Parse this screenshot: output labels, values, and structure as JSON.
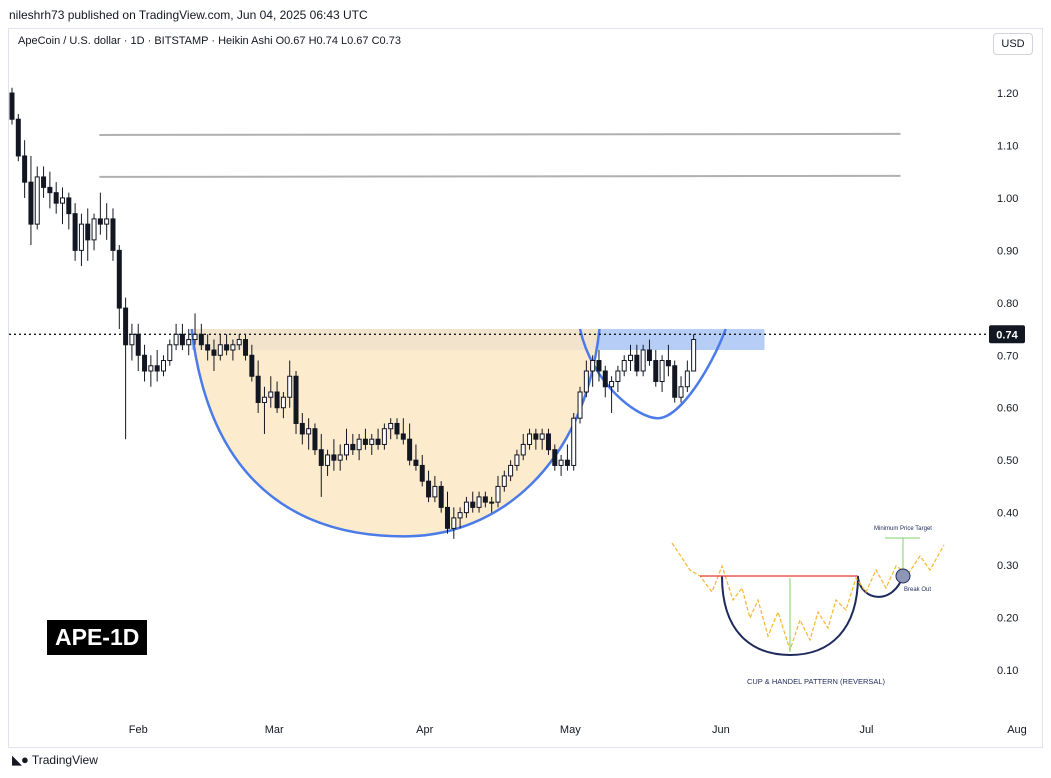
{
  "header": {
    "publisher": "nileshrh73 published on TradingView.com, Jun 04, 2025 06:43 UTC",
    "legend": "ApeCoin / U.S. dollar · 1D · BITSTAMP · Heikin Ashi  O0.67  H0.74  L0.67  C0.73",
    "currency": "USD"
  },
  "ticker_label": "APE-1D",
  "footer": {
    "logo": "◣●",
    "brand": "TradingView"
  },
  "inset": {
    "title": "Minimum Price Target",
    "breakout": "Break Out",
    "caption": "CUP & HANDEL PATTERN (REVERSAL)"
  },
  "price_badge": "0.74",
  "colors": {
    "bull": "#131722",
    "bear": "#131722",
    "cup_fill": "#fde7c4",
    "cup_line": "#4a7be8",
    "resistance_band": "#a9c5f5",
    "target_lines": "#b0b0b0"
  },
  "chart_data": {
    "type": "candlestick",
    "style": "Heikin Ashi",
    "symbol": "APEUSD",
    "timeframe": "1D",
    "y_axis": {
      "ticks": [
        0.1,
        0.2,
        0.3,
        0.4,
        0.5,
        0.6,
        0.7,
        0.8,
        0.9,
        1.0,
        1.1,
        1.2
      ],
      "labels": [
        "0.10",
        "0.20",
        "0.30",
        "0.40",
        "0.50",
        "0.60",
        "0.70",
        "0.80",
        "0.90",
        "1.00",
        "1.10",
        "1.20"
      ],
      "ylim": [
        0.02,
        1.27
      ]
    },
    "x_axis": {
      "labels": [
        "Feb",
        "Mar",
        "Apr",
        "May",
        "Jun",
        "Jul",
        "Aug"
      ],
      "label_days": [
        26,
        54,
        85,
        115,
        146,
        176,
        207
      ]
    },
    "last_price": 0.74,
    "candles": [
      [
        0,
        1.2,
        1.21,
        1.14,
        1.15
      ],
      [
        1,
        1.15,
        1.16,
        1.07,
        1.08
      ],
      [
        2,
        1.08,
        1.11,
        1.0,
        1.03
      ],
      [
        3,
        1.03,
        1.08,
        0.91,
        0.95
      ],
      [
        4,
        0.95,
        1.06,
        0.94,
        1.04
      ],
      [
        5,
        1.04,
        1.06,
        1.0,
        1.02
      ],
      [
        6,
        1.02,
        1.05,
        0.98,
        1.01
      ],
      [
        7,
        1.01,
        1.03,
        0.97,
        0.99
      ],
      [
        8,
        0.99,
        1.02,
        0.95,
        1.0
      ],
      [
        9,
        1.0,
        1.01,
        0.94,
        0.97
      ],
      [
        10,
        0.97,
        0.99,
        0.88,
        0.9
      ],
      [
        11,
        0.9,
        0.97,
        0.87,
        0.95
      ],
      [
        12,
        0.95,
        0.98,
        0.88,
        0.92
      ],
      [
        13,
        0.92,
        0.97,
        0.9,
        0.96
      ],
      [
        14,
        0.96,
        1.01,
        0.93,
        0.95
      ],
      [
        15,
        0.95,
        0.99,
        0.92,
        0.96
      ],
      [
        16,
        0.96,
        0.98,
        0.88,
        0.9
      ],
      [
        17,
        0.9,
        0.91,
        0.75,
        0.79
      ],
      [
        18,
        0.79,
        0.81,
        0.54,
        0.72
      ],
      [
        19,
        0.72,
        0.76,
        0.69,
        0.74
      ],
      [
        20,
        0.74,
        0.76,
        0.67,
        0.7
      ],
      [
        21,
        0.7,
        0.72,
        0.65,
        0.67
      ],
      [
        22,
        0.67,
        0.7,
        0.64,
        0.68
      ],
      [
        23,
        0.68,
        0.71,
        0.65,
        0.67
      ],
      [
        24,
        0.67,
        0.7,
        0.66,
        0.69
      ],
      [
        25,
        0.69,
        0.73,
        0.68,
        0.72
      ],
      [
        26,
        0.72,
        0.76,
        0.71,
        0.74
      ],
      [
        27,
        0.74,
        0.76,
        0.71,
        0.72
      ],
      [
        28,
        0.72,
        0.75,
        0.7,
        0.73
      ],
      [
        29,
        0.73,
        0.78,
        0.72,
        0.74
      ],
      [
        30,
        0.74,
        0.76,
        0.71,
        0.72
      ],
      [
        31,
        0.72,
        0.74,
        0.69,
        0.71
      ],
      [
        32,
        0.71,
        0.73,
        0.67,
        0.7
      ],
      [
        33,
        0.7,
        0.74,
        0.69,
        0.72
      ],
      [
        34,
        0.72,
        0.74,
        0.7,
        0.71
      ],
      [
        35,
        0.71,
        0.73,
        0.69,
        0.72
      ],
      [
        36,
        0.72,
        0.74,
        0.71,
        0.73
      ],
      [
        37,
        0.73,
        0.74,
        0.69,
        0.7
      ],
      [
        38,
        0.7,
        0.72,
        0.65,
        0.66
      ],
      [
        39,
        0.66,
        0.69,
        0.59,
        0.61
      ],
      [
        40,
        0.61,
        0.64,
        0.55,
        0.62
      ],
      [
        41,
        0.62,
        0.66,
        0.6,
        0.63
      ],
      [
        42,
        0.63,
        0.65,
        0.59,
        0.6
      ],
      [
        43,
        0.6,
        0.63,
        0.58,
        0.62
      ],
      [
        44,
        0.62,
        0.69,
        0.6,
        0.66
      ],
      [
        45,
        0.66,
        0.67,
        0.55,
        0.57
      ],
      [
        46,
        0.57,
        0.59,
        0.53,
        0.55
      ],
      [
        47,
        0.55,
        0.58,
        0.52,
        0.56
      ],
      [
        48,
        0.56,
        0.57,
        0.51,
        0.52
      ],
      [
        49,
        0.52,
        0.55,
        0.43,
        0.49
      ],
      [
        50,
        0.49,
        0.52,
        0.47,
        0.51
      ],
      [
        51,
        0.51,
        0.54,
        0.48,
        0.5
      ],
      [
        52,
        0.5,
        0.53,
        0.48,
        0.51
      ],
      [
        53,
        0.51,
        0.56,
        0.5,
        0.53
      ],
      [
        54,
        0.53,
        0.55,
        0.51,
        0.52
      ],
      [
        55,
        0.52,
        0.55,
        0.5,
        0.54
      ],
      [
        56,
        0.54,
        0.56,
        0.52,
        0.53
      ],
      [
        57,
        0.53,
        0.55,
        0.51,
        0.54
      ],
      [
        58,
        0.54,
        0.56,
        0.52,
        0.53
      ],
      [
        59,
        0.53,
        0.57,
        0.52,
        0.56
      ],
      [
        60,
        0.56,
        0.58,
        0.54,
        0.57
      ],
      [
        61,
        0.57,
        0.58,
        0.54,
        0.55
      ],
      [
        62,
        0.55,
        0.58,
        0.53,
        0.54
      ],
      [
        63,
        0.54,
        0.57,
        0.49,
        0.5
      ],
      [
        64,
        0.5,
        0.53,
        0.48,
        0.49
      ],
      [
        65,
        0.49,
        0.51,
        0.45,
        0.46
      ],
      [
        66,
        0.46,
        0.48,
        0.42,
        0.43
      ],
      [
        67,
        0.43,
        0.47,
        0.42,
        0.45
      ],
      [
        68,
        0.45,
        0.46,
        0.4,
        0.41
      ],
      [
        69,
        0.41,
        0.44,
        0.36,
        0.37
      ],
      [
        70,
        0.37,
        0.41,
        0.35,
        0.39
      ],
      [
        71,
        0.39,
        0.41,
        0.37,
        0.4
      ],
      [
        72,
        0.4,
        0.43,
        0.39,
        0.42
      ],
      [
        73,
        0.42,
        0.44,
        0.4,
        0.41
      ],
      [
        74,
        0.41,
        0.44,
        0.4,
        0.43
      ],
      [
        75,
        0.43,
        0.44,
        0.41,
        0.42
      ],
      [
        76,
        0.42,
        0.43,
        0.4,
        0.42
      ],
      [
        77,
        0.42,
        0.47,
        0.41,
        0.45
      ],
      [
        78,
        0.45,
        0.48,
        0.44,
        0.47
      ],
      [
        79,
        0.47,
        0.5,
        0.46,
        0.49
      ],
      [
        80,
        0.49,
        0.52,
        0.48,
        0.51
      ],
      [
        81,
        0.51,
        0.55,
        0.5,
        0.53
      ],
      [
        82,
        0.53,
        0.56,
        0.52,
        0.55
      ],
      [
        83,
        0.55,
        0.56,
        0.52,
        0.54
      ],
      [
        84,
        0.54,
        0.56,
        0.52,
        0.55
      ],
      [
        85,
        0.55,
        0.56,
        0.51,
        0.52
      ],
      [
        86,
        0.52,
        0.53,
        0.48,
        0.49
      ],
      [
        87,
        0.49,
        0.51,
        0.47,
        0.5
      ],
      [
        88,
        0.5,
        0.53,
        0.48,
        0.49
      ],
      [
        89,
        0.49,
        0.59,
        0.48,
        0.58
      ],
      [
        90,
        0.58,
        0.64,
        0.57,
        0.63
      ],
      [
        91,
        0.63,
        0.69,
        0.62,
        0.67
      ],
      [
        92,
        0.67,
        0.7,
        0.64,
        0.69
      ],
      [
        93,
        0.69,
        0.71,
        0.65,
        0.67
      ],
      [
        94,
        0.67,
        0.68,
        0.62,
        0.64
      ],
      [
        95,
        0.64,
        0.66,
        0.59,
        0.65
      ],
      [
        96,
        0.65,
        0.68,
        0.63,
        0.67
      ],
      [
        97,
        0.67,
        0.7,
        0.66,
        0.69
      ],
      [
        98,
        0.69,
        0.72,
        0.67,
        0.7
      ],
      [
        99,
        0.7,
        0.72,
        0.66,
        0.67
      ],
      [
        100,
        0.67,
        0.72,
        0.66,
        0.71
      ],
      [
        101,
        0.71,
        0.73,
        0.68,
        0.69
      ],
      [
        102,
        0.69,
        0.71,
        0.64,
        0.65
      ],
      [
        103,
        0.65,
        0.7,
        0.63,
        0.69
      ],
      [
        104,
        0.69,
        0.72,
        0.66,
        0.68
      ],
      [
        105,
        0.68,
        0.69,
        0.61,
        0.62
      ],
      [
        106,
        0.62,
        0.66,
        0.61,
        0.64
      ],
      [
        107,
        0.64,
        0.69,
        0.63,
        0.67
      ],
      [
        108,
        0.67,
        0.74,
        0.67,
        0.73
      ]
    ],
    "candle_start_day": 0,
    "candle_day_spacing": 1.3,
    "horizontal_lines": [
      {
        "from_day": 18,
        "to_day": 183,
        "y_start": 1.12,
        "y_end": 1.122
      },
      {
        "from_day": 18,
        "to_day": 183,
        "y_start": 1.04,
        "y_end": 1.042
      }
    ],
    "resistance_zone": {
      "from_day": 37,
      "to_day": 155,
      "y_low": 0.71,
      "y_high": 0.75
    },
    "cup": {
      "left_day": 37,
      "left_y": 0.75,
      "bottom_day": 82,
      "bottom_y": 0.355,
      "right_day": 121,
      "right_y": 0.75
    },
    "handle": {
      "left_day": 117,
      "left_y": 0.75,
      "bottom_day": 133,
      "bottom_y": 0.58,
      "right_day": 147,
      "right_y": 0.75
    }
  }
}
